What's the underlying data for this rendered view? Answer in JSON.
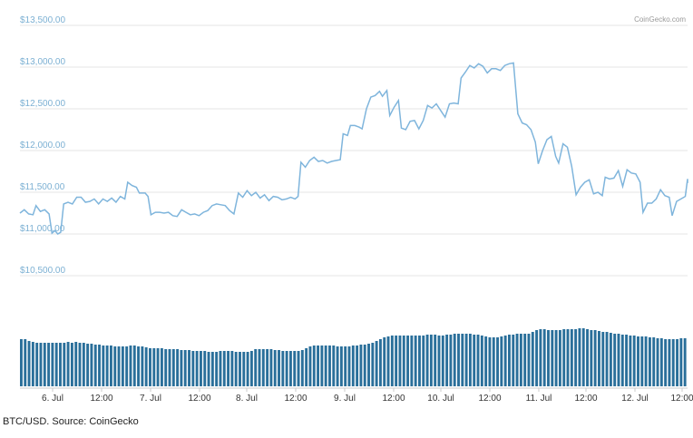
{
  "caption": "BTC/USD. Source: CoinGecko",
  "credit": "CoinGecko.com",
  "colors": {
    "line": "#7fb5dc",
    "volume": "#2a6f9a",
    "grid": "#e6e6e6",
    "y_tick": "#7cb0d3",
    "x_tick": "#333333"
  },
  "chart_data": {
    "type": "line",
    "title": "",
    "xlabel": "",
    "ylabel": "",
    "ylim": [
      10500,
      13500
    ],
    "y_ticks": [
      "$10,500.00",
      "$11,000.00",
      "$11,500.00",
      "$12,000.00",
      "$12,500.00",
      "$13,000.00",
      "$13,500.00"
    ],
    "y_tick_values": [
      10500,
      11000,
      11500,
      12000,
      12500,
      13000,
      13500
    ],
    "x_ticks": [
      "6. Jul",
      "12:00",
      "7. Jul",
      "12:00",
      "8. Jul",
      "12:00",
      "9. Jul",
      "12:00",
      "10. Jul",
      "12:00",
      "11. Jul",
      "12:00",
      "12. Jul",
      "12:00"
    ],
    "x_tick_hours": [
      12,
      24,
      36,
      48,
      60,
      72,
      84,
      96,
      108,
      120,
      132,
      144,
      156,
      168
    ],
    "x_range_hours": [
      0,
      172
    ],
    "grid": true,
    "legend": "none",
    "series": [
      {
        "values": [
          [
            0,
            11250
          ],
          [
            1.5,
            11290
          ],
          [
            3,
            11240
          ],
          [
            4.5,
            11230
          ],
          [
            5.5,
            11340
          ],
          [
            7,
            11270
          ],
          [
            8.5,
            11290
          ],
          [
            10,
            11240
          ],
          [
            11,
            11010
          ],
          [
            12,
            11040
          ],
          [
            13,
            11000
          ],
          [
            14,
            11020
          ],
          [
            15,
            11360
          ],
          [
            16.5,
            11380
          ],
          [
            18,
            11360
          ],
          [
            19.5,
            11440
          ],
          [
            21,
            11440
          ],
          [
            22.5,
            11380
          ],
          [
            24,
            11390
          ],
          [
            25.5,
            11420
          ],
          [
            27,
            11360
          ],
          [
            28.5,
            11420
          ],
          [
            30,
            11390
          ],
          [
            31.5,
            11430
          ],
          [
            33,
            11380
          ],
          [
            34.5,
            11450
          ],
          [
            36,
            11420
          ],
          [
            37,
            11620
          ],
          [
            38.5,
            11580
          ],
          [
            40,
            11560
          ],
          [
            41,
            11490
          ],
          [
            43,
            11490
          ],
          [
            44,
            11450
          ],
          [
            45,
            11230
          ],
          [
            46.5,
            11260
          ],
          [
            48,
            11260
          ],
          [
            49.5,
            11250
          ],
          [
            51,
            11260
          ],
          [
            52.5,
            11220
          ],
          [
            54,
            11210
          ],
          [
            55.5,
            11290
          ],
          [
            57,
            11260
          ],
          [
            58.5,
            11230
          ],
          [
            60,
            11240
          ],
          [
            61.5,
            11220
          ],
          [
            63,
            11260
          ],
          [
            64.5,
            11280
          ],
          [
            66,
            11340
          ],
          [
            67.5,
            11360
          ],
          [
            69,
            11350
          ],
          [
            70.5,
            11340
          ],
          [
            72,
            11280
          ],
          [
            73.5,
            11240
          ],
          [
            75,
            11490
          ],
          [
            76.5,
            11440
          ],
          [
            78,
            11520
          ],
          [
            79.5,
            11460
          ],
          [
            81,
            11500
          ],
          [
            82.5,
            11430
          ],
          [
            84,
            11470
          ],
          [
            85.5,
            11400
          ],
          [
            87,
            11450
          ],
          [
            88.5,
            11440
          ],
          [
            90,
            11410
          ],
          [
            91.5,
            11420
          ],
          [
            93,
            11440
          ],
          [
            94.5,
            11420
          ],
          [
            95.5,
            11450
          ],
          [
            96.5,
            11860
          ],
          [
            98,
            11800
          ],
          [
            99.5,
            11880
          ],
          [
            101,
            11920
          ],
          [
            102.5,
            11870
          ],
          [
            104,
            11880
          ],
          [
            105.5,
            11850
          ],
          [
            107,
            11870
          ],
          [
            108.5,
            11880
          ],
          [
            110,
            11890
          ],
          [
            111,
            12200
          ],
          [
            112.5,
            12180
          ],
          [
            113.5,
            12300
          ],
          [
            115,
            12300
          ],
          [
            116.5,
            12280
          ],
          [
            117.5,
            12260
          ],
          [
            119,
            12500
          ],
          [
            120.5,
            12640
          ],
          [
            122,
            12660
          ],
          [
            123.5,
            12710
          ],
          [
            124.5,
            12650
          ],
          [
            126,
            12720
          ],
          [
            127,
            12420
          ],
          [
            128.5,
            12520
          ],
          [
            130,
            12600
          ],
          [
            131,
            12270
          ],
          [
            132.5,
            12250
          ],
          [
            134,
            12350
          ],
          [
            135.5,
            12360
          ],
          [
            137,
            12260
          ],
          [
            138.5,
            12360
          ],
          [
            140,
            12540
          ],
          [
            141.5,
            12510
          ],
          [
            143,
            12560
          ],
          [
            144.5,
            12480
          ],
          [
            146,
            12400
          ],
          [
            147.5,
            12560
          ],
          [
            149,
            12570
          ],
          [
            150.5,
            12560
          ],
          [
            151.5,
            12870
          ],
          [
            153,
            12940
          ],
          [
            154.5,
            13020
          ],
          [
            156,
            12990
          ],
          [
            157.5,
            13040
          ],
          [
            159,
            13010
          ],
          [
            160.5,
            12930
          ],
          [
            162,
            12980
          ],
          [
            163.5,
            12980
          ],
          [
            165,
            12960
          ],
          [
            166.5,
            13020
          ],
          [
            168,
            13040
          ],
          [
            169.5,
            13050
          ],
          [
            171,
            12440
          ],
          [
            172.5,
            12330
          ],
          [
            174,
            12310
          ],
          [
            175.5,
            12250
          ],
          [
            177,
            12100
          ],
          [
            178,
            11840
          ],
          [
            179.5,
            12000
          ],
          [
            181,
            12130
          ],
          [
            182.5,
            12170
          ],
          [
            184,
            11930
          ],
          [
            185,
            11850
          ],
          [
            186.5,
            12080
          ],
          [
            188,
            12040
          ],
          [
            189.5,
            11810
          ],
          [
            191,
            11470
          ],
          [
            192.5,
            11560
          ],
          [
            194,
            11620
          ],
          [
            195.5,
            11650
          ],
          [
            197,
            11480
          ],
          [
            198.5,
            11500
          ],
          [
            200,
            11460
          ],
          [
            201,
            11680
          ],
          [
            202.5,
            11660
          ],
          [
            204,
            11670
          ],
          [
            205.5,
            11760
          ],
          [
            207,
            11570
          ],
          [
            208.5,
            11770
          ],
          [
            210,
            11730
          ],
          [
            211.5,
            11720
          ],
          [
            213,
            11620
          ],
          [
            214,
            11260
          ],
          [
            215.5,
            11370
          ],
          [
            217,
            11370
          ],
          [
            218.5,
            11420
          ],
          [
            220,
            11530
          ],
          [
            221.5,
            11460
          ],
          [
            223,
            11440
          ],
          [
            224,
            11220
          ],
          [
            225.5,
            11390
          ],
          [
            227,
            11420
          ],
          [
            228.5,
            11450
          ],
          [
            230,
            11660
          ],
          [
            231.5,
            11610
          ],
          [
            232.5,
            11660
          ]
        ]
      },
      {
        "name": "",
        "type": "bar",
        "volume": [
          0.52,
          0.52,
          0.5,
          0.49,
          0.48,
          0.48,
          0.48,
          0.48,
          0.48,
          0.48,
          0.48,
          0.48,
          0.49,
          0.48,
          0.49,
          0.48,
          0.48,
          0.47,
          0.47,
          0.46,
          0.46,
          0.45,
          0.45,
          0.45,
          0.44,
          0.44,
          0.44,
          0.44,
          0.45,
          0.45,
          0.44,
          0.44,
          0.43,
          0.42,
          0.42,
          0.42,
          0.42,
          0.41,
          0.41,
          0.41,
          0.41,
          0.4,
          0.4,
          0.4,
          0.39,
          0.39,
          0.39,
          0.39,
          0.38,
          0.38,
          0.38,
          0.39,
          0.39,
          0.39,
          0.39,
          0.38,
          0.38,
          0.38,
          0.38,
          0.39,
          0.41,
          0.41,
          0.41,
          0.41,
          0.41,
          0.4,
          0.4,
          0.39,
          0.39,
          0.39,
          0.39,
          0.39,
          0.4,
          0.42,
          0.44,
          0.45,
          0.45,
          0.45,
          0.45,
          0.45,
          0.45,
          0.44,
          0.44,
          0.44,
          0.44,
          0.45,
          0.45,
          0.46,
          0.46,
          0.47,
          0.48,
          0.5,
          0.52,
          0.54,
          0.55,
          0.56,
          0.56,
          0.56,
          0.56,
          0.56,
          0.56,
          0.56,
          0.56,
          0.56,
          0.57,
          0.57,
          0.57,
          0.56,
          0.56,
          0.57,
          0.57,
          0.58,
          0.58,
          0.58,
          0.58,
          0.58,
          0.57,
          0.57,
          0.56,
          0.55,
          0.54,
          0.54,
          0.54,
          0.55,
          0.56,
          0.57,
          0.57,
          0.58,
          0.58,
          0.58,
          0.58,
          0.6,
          0.62,
          0.63,
          0.63,
          0.62,
          0.62,
          0.62,
          0.62,
          0.63,
          0.63,
          0.63,
          0.63,
          0.64,
          0.64,
          0.63,
          0.62,
          0.62,
          0.61,
          0.6,
          0.6,
          0.59,
          0.58,
          0.58,
          0.57,
          0.57,
          0.56,
          0.56,
          0.55,
          0.55,
          0.55,
          0.54,
          0.54,
          0.53,
          0.53,
          0.52,
          0.52,
          0.52,
          0.52,
          0.53,
          0.53
        ]
      }
    ]
  }
}
